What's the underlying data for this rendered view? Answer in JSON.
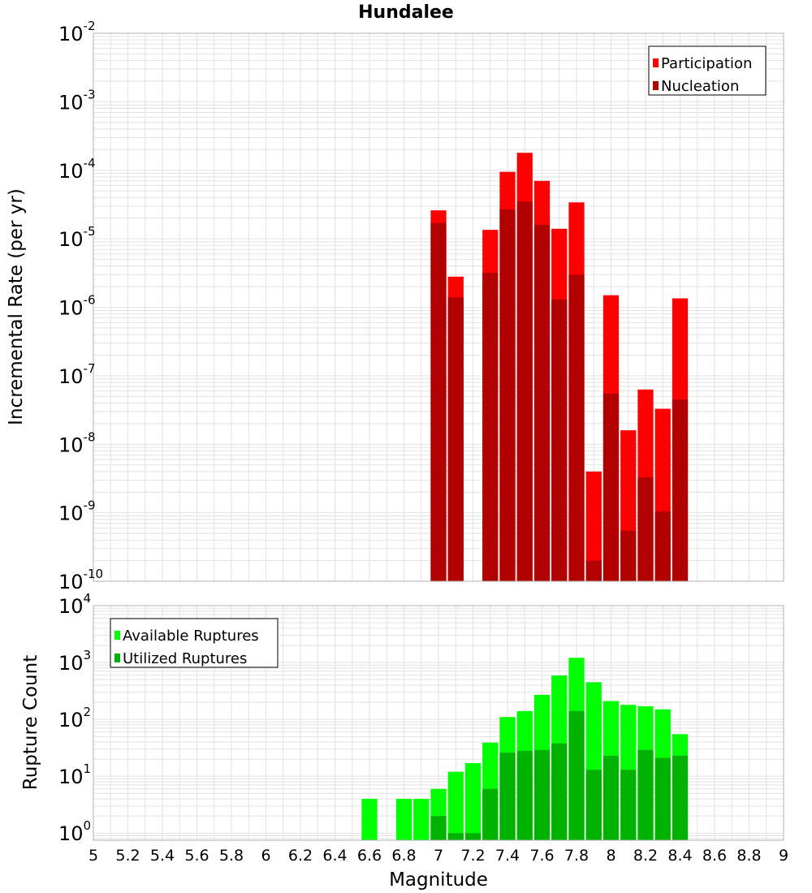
{
  "title": "Hundalee",
  "colors": {
    "participation": "#ff0000",
    "nucleation": "#b20000",
    "available": "#00ff00",
    "utilized": "#00b200",
    "grid": "#e2e2e2",
    "frame": "#b0b0b0"
  },
  "chart_data": [
    {
      "type": "bar",
      "name": "rate-panel",
      "ylabel": "Incremental Rate (per yr)",
      "yscale": "log",
      "ylim": [
        1e-10,
        0.01
      ],
      "xlim": [
        5,
        9
      ],
      "bar_width": 0.1,
      "grid": true,
      "legend_position": "top-right",
      "x": [
        7.0,
        7.1,
        7.3,
        7.4,
        7.5,
        7.6,
        7.7,
        7.8,
        7.9,
        8.0,
        8.1,
        8.2,
        8.3,
        8.4
      ],
      "series": [
        {
          "name": "Participation",
          "values": [
            2.6e-05,
            2.8e-06,
            1.35e-05,
            9.5e-05,
            0.00018,
            7e-05,
            1.4e-05,
            3.4e-05,
            4e-09,
            1.5e-06,
            1.6e-08,
            6.3e-08,
            3.3e-08,
            1.35e-06
          ]
        },
        {
          "name": "Nucleation",
          "values": [
            1.7e-05,
            1.4e-06,
            3.2e-06,
            2.7e-05,
            3.5e-05,
            1.6e-05,
            1.3e-06,
            3e-06,
            2e-10,
            5.5e-08,
            5.5e-10,
            3.3e-09,
            1.05e-09,
            4.5e-08
          ]
        }
      ]
    },
    {
      "type": "bar",
      "name": "count-panel",
      "xlabel": "Magnitude",
      "ylabel": "Rupture Count",
      "yscale": "log",
      "ylim": [
        0.75,
        10000
      ],
      "xlim": [
        5,
        9
      ],
      "bar_width": 0.1,
      "grid": true,
      "legend_position": "top-left",
      "x": [
        6.6,
        6.8,
        6.9,
        7.0,
        7.1,
        7.2,
        7.3,
        7.4,
        7.5,
        7.6,
        7.7,
        7.8,
        7.9,
        8.0,
        8.1,
        8.2,
        8.3,
        8.4
      ],
      "series": [
        {
          "name": "Available Ruptures",
          "values": [
            4,
            4,
            4,
            6,
            12,
            17,
            39,
            110,
            140,
            270,
            590,
            1210,
            450,
            210,
            180,
            170,
            150,
            55
          ]
        },
        {
          "name": "Utilized Ruptures",
          "values": [
            null,
            null,
            null,
            2,
            1,
            1,
            6,
            26,
            28,
            29,
            38,
            140,
            13,
            23,
            13,
            29,
            21,
            23
          ]
        }
      ]
    }
  ],
  "top_ticks": [
    {
      "value": 0.01,
      "base": "10",
      "exp": "-2"
    },
    {
      "value": 0.001,
      "base": "10",
      "exp": "-3"
    },
    {
      "value": 0.0001,
      "base": "10",
      "exp": "-4"
    },
    {
      "value": 1e-05,
      "base": "10",
      "exp": "-5"
    },
    {
      "value": 1e-06,
      "base": "10",
      "exp": "-6"
    },
    {
      "value": 1e-07,
      "base": "10",
      "exp": "-7"
    },
    {
      "value": 1e-08,
      "base": "10",
      "exp": "-8"
    },
    {
      "value": 1e-09,
      "base": "10",
      "exp": "-9"
    },
    {
      "value": 1e-10,
      "base": "10",
      "exp": "-10"
    }
  ],
  "bottom_ticks": [
    {
      "value": 1,
      "base": "10",
      "exp": "0"
    },
    {
      "value": 10,
      "base": "10",
      "exp": "1"
    },
    {
      "value": 100,
      "base": "10",
      "exp": "2"
    },
    {
      "value": 1000,
      "base": "10",
      "exp": "3"
    },
    {
      "value": 10000,
      "base": "10",
      "exp": "4"
    }
  ],
  "x_ticks": [
    "5",
    "5.2",
    "5.4",
    "5.6",
    "5.8",
    "6",
    "6.2",
    "6.4",
    "6.6",
    "6.8",
    "7",
    "7.2",
    "7.4",
    "7.6",
    "7.8",
    "8",
    "8.2",
    "8.4",
    "8.6",
    "8.8",
    "9"
  ]
}
